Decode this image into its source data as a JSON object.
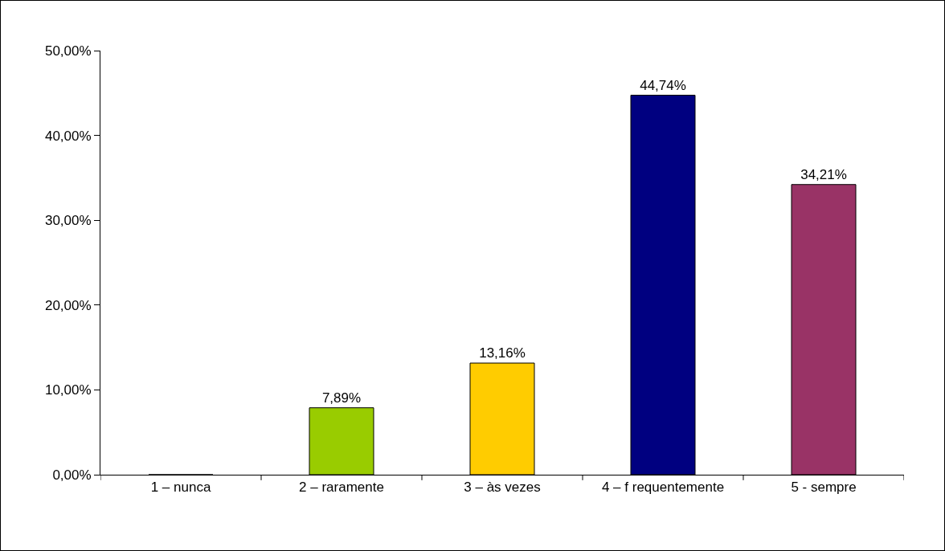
{
  "chart_data": {
    "type": "bar",
    "categories": [
      "1 – nunca",
      "2 – raramente",
      "3 – às vezes",
      "4 – f requentemente",
      "5 - sempre"
    ],
    "values": [
      0,
      7.89,
      13.16,
      44.74,
      34.21
    ],
    "colors": [
      "#99cc00",
      "#99cc00",
      "#ffcc00",
      "#000080",
      "#993366"
    ],
    "value_labels": [
      null,
      "7,89%",
      "13,16%",
      "44,74%",
      "34,21%"
    ],
    "ylim": [
      0,
      50
    ],
    "yticks": [
      {
        "value": 0,
        "label": "0,00%"
      },
      {
        "value": 10,
        "label": "10,00%"
      },
      {
        "value": 20,
        "label": "20,00%"
      },
      {
        "value": 30,
        "label": "30,00%"
      },
      {
        "value": 40,
        "label": "40,00%"
      },
      {
        "value": 50,
        "label": "50,00%"
      }
    ],
    "grid": false
  }
}
